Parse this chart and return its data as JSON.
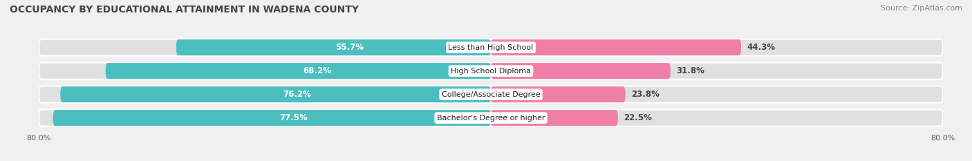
{
  "title": "OCCUPANCY BY EDUCATIONAL ATTAINMENT IN WADENA COUNTY",
  "source": "Source: ZipAtlas.com",
  "categories": [
    "Less than High School",
    "High School Diploma",
    "College/Associate Degree",
    "Bachelor's Degree or higher"
  ],
  "owner_values": [
    55.7,
    68.2,
    76.2,
    77.5
  ],
  "renter_values": [
    44.3,
    31.8,
    23.8,
    22.5
  ],
  "owner_color": "#4BBFC0",
  "renter_color": "#F07FA8",
  "axis_max": 80.0,
  "owner_label_color": "#ffffff",
  "renter_label_color": "#555555",
  "background_color": "#f0f0f0",
  "row_bg_color": "#e0e0e0",
  "title_fontsize": 10,
  "source_fontsize": 8,
  "bar_label_fontsize": 8.5,
  "category_fontsize": 8,
  "legend_fontsize": 8.5,
  "axis_label_fontsize": 8
}
